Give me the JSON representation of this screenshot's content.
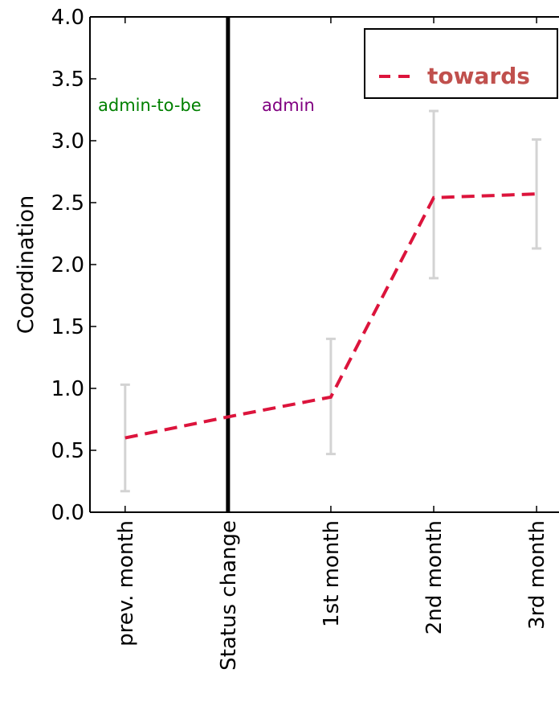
{
  "chart_data": {
    "type": "line",
    "categories": [
      "prev. month",
      "Status change",
      "1st month",
      "2nd month",
      "3rd month"
    ],
    "series": [
      {
        "name": "towards",
        "color": "#dc143c",
        "style": "dashed",
        "values": [
          0.6,
          0.77,
          0.93,
          2.54,
          2.57
        ],
        "error_low": [
          0.17,
          null,
          0.47,
          1.89,
          2.13
        ],
        "error_high": [
          1.03,
          null,
          1.4,
          3.24,
          3.01
        ]
      }
    ],
    "error_bar_color": "#d3d3d3",
    "status_change_marker": {
      "category": "Status change",
      "color": "#000000"
    },
    "region_labels": [
      {
        "text": "admin-to-be",
        "color": "#008000"
      },
      {
        "text": "admin",
        "color": "#800080"
      }
    ],
    "ylabel": "Coordination",
    "xlabel": "",
    "ylim": [
      0.0,
      4.0
    ],
    "yticks": [
      "0.0",
      "0.5",
      "1.0",
      "1.5",
      "2.0",
      "2.5",
      "3.0",
      "3.5",
      "4.0"
    ],
    "legend": {
      "position": "top-right",
      "text_color": "#c0504d"
    },
    "grid": false
  }
}
